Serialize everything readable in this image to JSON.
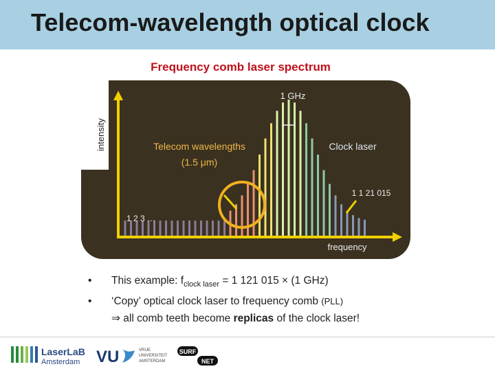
{
  "header": {
    "title": "Telecom-wavelength optical clock"
  },
  "figure": {
    "title": "Frequency comb laser spectrum",
    "y_axis_label": "intensity",
    "x_axis_label": "frequency",
    "spacing_label": "1 GHz",
    "telecom_label": [
      "Telecom wavelengths",
      "(1.5 μm)"
    ],
    "clock_label": "Clock laser",
    "clock_mode_number": "1 1 21 015",
    "first_modes": "1 2 3 …"
  },
  "bullets": [
    [
      "This example: f",
      "clock laser",
      "= 1 121 015 × (1 GHz)"
    ],
    [
      "‘Copy’ optical clock laser to frequency comb",
      "(PLL)"
    ],
    [
      "⇒ all comb teeth become",
      "replicas",
      "of the clock laser!"
    ]
  ],
  "logos": {
    "laserlab": [
      "LaserLaB",
      "Amsterdam"
    ],
    "vu": [
      "VU",
      "VRIJE",
      "UNIVERSITEIT",
      "AMSTERDAM"
    ],
    "surf": [
      "SURF",
      "NET"
    ]
  }
}
